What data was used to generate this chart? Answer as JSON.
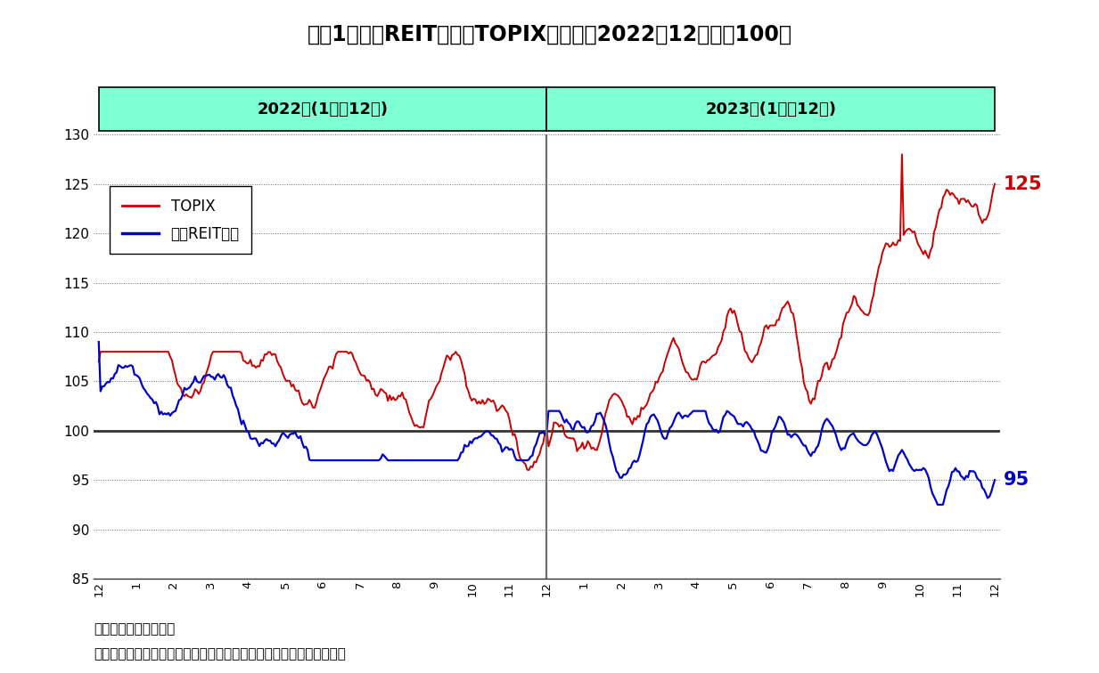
{
  "title": "図袅1：東証REIT指数とTOPIXの推移（2022年12月末＝100）",
  "label_2022": "2022年(1月～12月)",
  "label_2023": "2023年(1月～12月)",
  "note1": "（注）配当除きの指数",
  "note2": "（出所）東京証券取引所のデータをもとにニッセイ基礎研究所が作成",
  "legend_topix": "TOPIX",
  "legend_reit": "東証REIT指数",
  "topix_color": "#cc0000",
  "reit_color": "#0000cc",
  "header_bg": "#7fffd4",
  "header_border": "#000000",
  "divider_color": "#707070",
  "baseline_color": "#333333",
  "end_label_topix": "125",
  "end_label_reit": "95"
}
